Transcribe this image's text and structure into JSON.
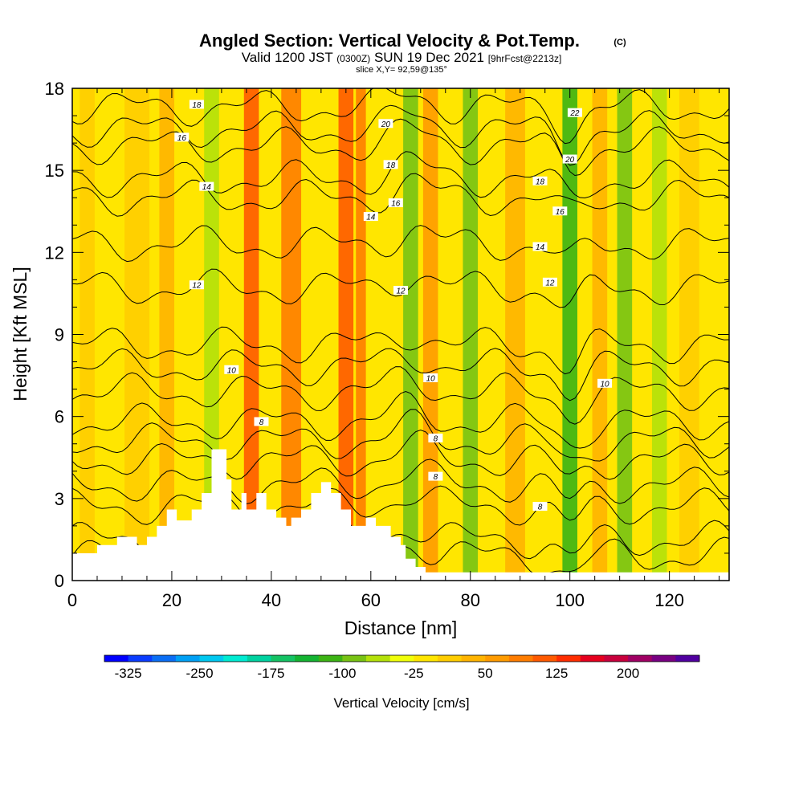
{
  "header": {
    "title": "Angled Section: Vertical Velocity & Pot.Temp.",
    "title_unit": "(C)",
    "valid_prefix": "Valid 1200 JST",
    "valid_zulu": "(0300Z)",
    "valid_date": "SUN 19 Dec 2021",
    "forecast": "[9hrFcst@2213z]",
    "slice": "slice X,Y= 92,59@135°"
  },
  "chart_data": {
    "type": "heatmap",
    "xlabel": "Distance [nm]",
    "ylabel": "Height [Kft MSL]",
    "xlim": [
      0,
      132
    ],
    "ylim": [
      0,
      18
    ],
    "x_ticks": [
      0,
      20,
      40,
      60,
      80,
      100,
      120
    ],
    "y_ticks": [
      0,
      3,
      6,
      9,
      12,
      15,
      18
    ],
    "x_tick_labels": [
      "0",
      "20",
      "40",
      "60",
      "80",
      "100",
      "120"
    ],
    "y_tick_labels": [
      "0",
      "3",
      "6",
      "9",
      "12",
      "15",
      "18"
    ],
    "background_value_cm_s": -10,
    "vertical_velocity_bands": [
      {
        "x": 3,
        "width": 3,
        "value": 15
      },
      {
        "x": 13,
        "width": 5,
        "value": 20
      },
      {
        "x": 19,
        "width": 3,
        "value": 25
      },
      {
        "x": 28,
        "width": 3,
        "value": -75
      },
      {
        "x": 36,
        "width": 3,
        "value": 100
      },
      {
        "x": 44,
        "width": 4,
        "value": 90
      },
      {
        "x": 48,
        "width": 2,
        "value": -25
      },
      {
        "x": 55,
        "width": 3,
        "value": 110
      },
      {
        "x": 58,
        "width": 2,
        "value": 85
      },
      {
        "x": 68,
        "width": 3,
        "value": -90
      },
      {
        "x": 72,
        "width": 3,
        "value": 50
      },
      {
        "x": 80,
        "width": 3,
        "value": -100
      },
      {
        "x": 89,
        "width": 4,
        "value": 40
      },
      {
        "x": 100,
        "width": 3,
        "value": -110
      },
      {
        "x": 106,
        "width": 3,
        "value": 30
      },
      {
        "x": 111,
        "width": 3,
        "value": -80
      },
      {
        "x": 118,
        "width": 3,
        "value": -60
      },
      {
        "x": 124,
        "width": 4,
        "value": 20
      }
    ],
    "terrain": {
      "x": [
        0,
        4,
        5,
        9,
        13,
        15,
        17,
        19,
        21,
        24,
        26,
        28,
        29,
        31,
        32,
        34,
        35,
        37,
        39,
        41,
        43,
        44,
        46,
        48,
        50,
        52,
        54,
        56,
        57,
        59,
        61,
        64,
        66,
        67,
        69,
        71,
        73,
        132
      ],
      "height_kft": [
        1.0,
        1.0,
        1.3,
        1.6,
        1.3,
        1.6,
        2.0,
        2.6,
        2.2,
        2.6,
        3.2,
        4.8,
        4.8,
        3.7,
        2.6,
        3.2,
        2.6,
        3.2,
        2.6,
        2.3,
        2.0,
        2.3,
        2.6,
        3.2,
        3.6,
        3.2,
        2.6,
        2.0,
        2.0,
        2.3,
        2.0,
        1.6,
        1.3,
        0.8,
        0.5,
        0.3,
        0.3,
        0.3
      ]
    },
    "isotherms": [
      {
        "value": 2,
        "base": 0.9,
        "label": ""
      },
      {
        "value": 3,
        "base": 1.5,
        "label": ""
      },
      {
        "value": 4,
        "base": 2.7,
        "label": ""
      },
      {
        "value": 5,
        "base": 3.5,
        "label": ""
      },
      {
        "value": 6,
        "base": 4.4,
        "label": ""
      },
      {
        "value": 7,
        "base": 5.1,
        "label": ""
      },
      {
        "value": 8,
        "base": 5.8,
        "label": "8"
      },
      {
        "value": 9,
        "base": 6.9,
        "label": ""
      },
      {
        "value": 10,
        "base": 7.8,
        "label": "10"
      },
      {
        "value": 11,
        "base": 8.6,
        "label": ""
      },
      {
        "value": 12,
        "base": 10.7,
        "label": "12"
      },
      {
        "value": 13,
        "base": 12.3,
        "label": ""
      },
      {
        "value": 14,
        "base": 14.0,
        "label": "14"
      },
      {
        "value": 15,
        "base": 14.7,
        "label": ""
      },
      {
        "value": 16,
        "base": 15.9,
        "label": "16"
      },
      {
        "value": 17,
        "base": 16.5,
        "label": ""
      },
      {
        "value": 18,
        "base": 17.3,
        "label": "18"
      }
    ],
    "isotherm_labels": [
      {
        "text": "18",
        "x": 25,
        "y": 17.4
      },
      {
        "text": "16",
        "x": 22,
        "y": 16.2
      },
      {
        "text": "14",
        "x": 27,
        "y": 14.4
      },
      {
        "text": "12",
        "x": 25,
        "y": 10.8
      },
      {
        "text": "10",
        "x": 32,
        "y": 7.7
      },
      {
        "text": "8",
        "x": 38,
        "y": 5.8
      },
      {
        "text": "20",
        "x": 63,
        "y": 16.7
      },
      {
        "text": "18",
        "x": 64,
        "y": 15.2
      },
      {
        "text": "16",
        "x": 65,
        "y": 13.8
      },
      {
        "text": "14",
        "x": 60,
        "y": 13.3
      },
      {
        "text": "12",
        "x": 66,
        "y": 10.6
      },
      {
        "text": "10",
        "x": 72,
        "y": 7.4
      },
      {
        "text": "8",
        "x": 73,
        "y": 5.2
      },
      {
        "text": "8",
        "x": 73,
        "y": 3.8
      },
      {
        "text": "22",
        "x": 101,
        "y": 17.1
      },
      {
        "text": "20",
        "x": 100,
        "y": 15.4
      },
      {
        "text": "18",
        "x": 94,
        "y": 14.6
      },
      {
        "text": "16",
        "x": 98,
        "y": 13.5
      },
      {
        "text": "14",
        "x": 94,
        "y": 12.2
      },
      {
        "text": "12",
        "x": 96,
        "y": 10.9
      },
      {
        "text": "10",
        "x": 107,
        "y": 7.2
      },
      {
        "text": "8",
        "x": 94,
        "y": 2.7
      }
    ],
    "colorbar": {
      "label": "Vertical Velocity [cm/s]",
      "min": -350,
      "step": 25,
      "colors": [
        "#0000ff",
        "#0a3cff",
        "#0a6ef5",
        "#00a0f5",
        "#00c8f0",
        "#00ebd2",
        "#00d2a0",
        "#14c364",
        "#14b432",
        "#3cb414",
        "#78c314",
        "#b4e10a",
        "#f0ff0a",
        "#ffe600",
        "#ffcd00",
        "#ffb400",
        "#ff9b00",
        "#ff7d00",
        "#ff5a00",
        "#ff2d00",
        "#e6001e",
        "#c8003c",
        "#a00064",
        "#780082",
        "#5000a0"
      ],
      "tick_values": [
        -325,
        -250,
        -175,
        -100,
        -25,
        50,
        125,
        200
      ],
      "tick_labels": [
        "-325",
        "-250",
        "-175",
        "-100",
        "-25",
        "50",
        "125",
        "200"
      ]
    }
  }
}
